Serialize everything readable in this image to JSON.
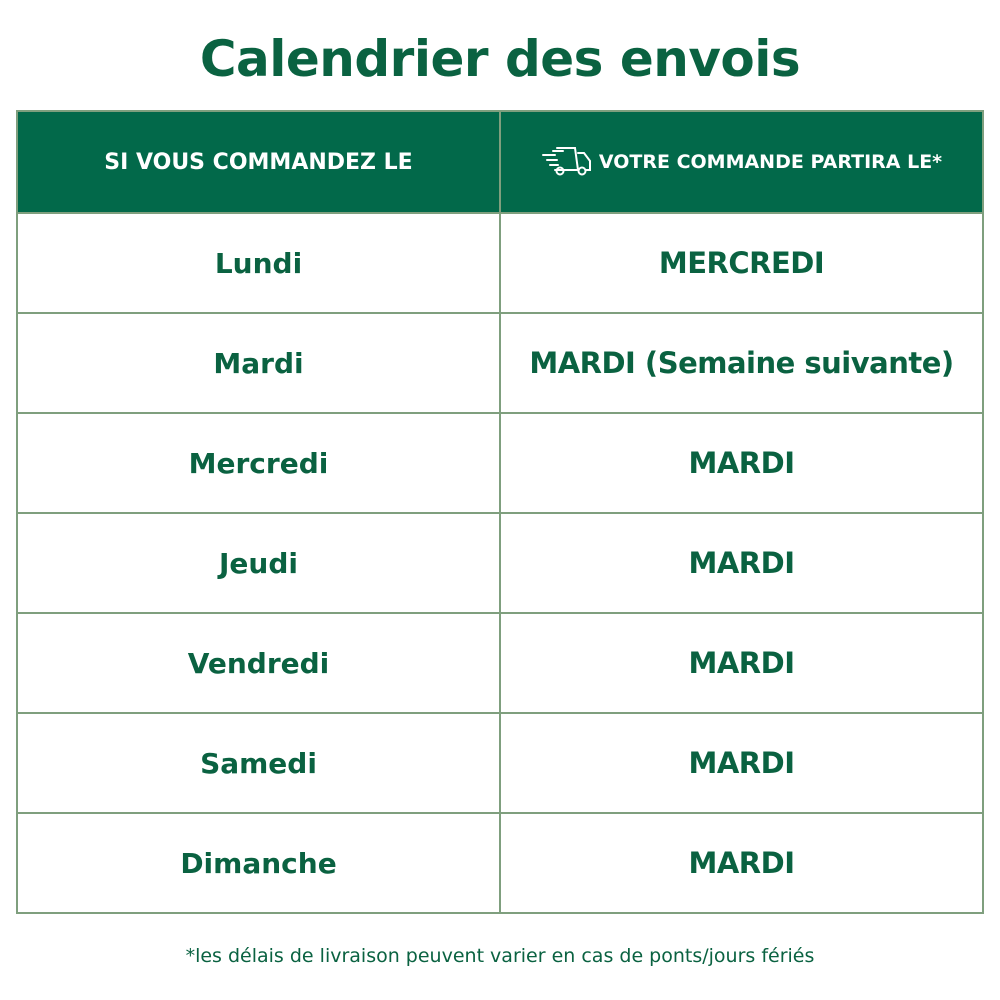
{
  "title": "Calendrier des envois",
  "headers": {
    "order_day": "SI VOUS COMMANDEZ LE",
    "ship_day": "VOTRE COMMANDE PARTIRA LE*",
    "ship_icon": "delivery-truck-icon"
  },
  "rows": [
    {
      "order": "Lundi",
      "ship": "MERCREDI"
    },
    {
      "order": "Mardi",
      "ship": "MARDI (Semaine suivante)"
    },
    {
      "order": "Mercredi",
      "ship": "MARDI"
    },
    {
      "order": "Jeudi",
      "ship": "MARDI"
    },
    {
      "order": "Vendredi",
      "ship": "MARDI"
    },
    {
      "order": "Samedi",
      "ship": "MARDI"
    },
    {
      "order": "Dimanche",
      "ship": "MARDI"
    }
  ],
  "footnote": "*les délais de livraison peuvent varier en cas de ponts/jours fériés",
  "colors": {
    "brand_green": "#02694a",
    "border": "#7f9f7e"
  }
}
